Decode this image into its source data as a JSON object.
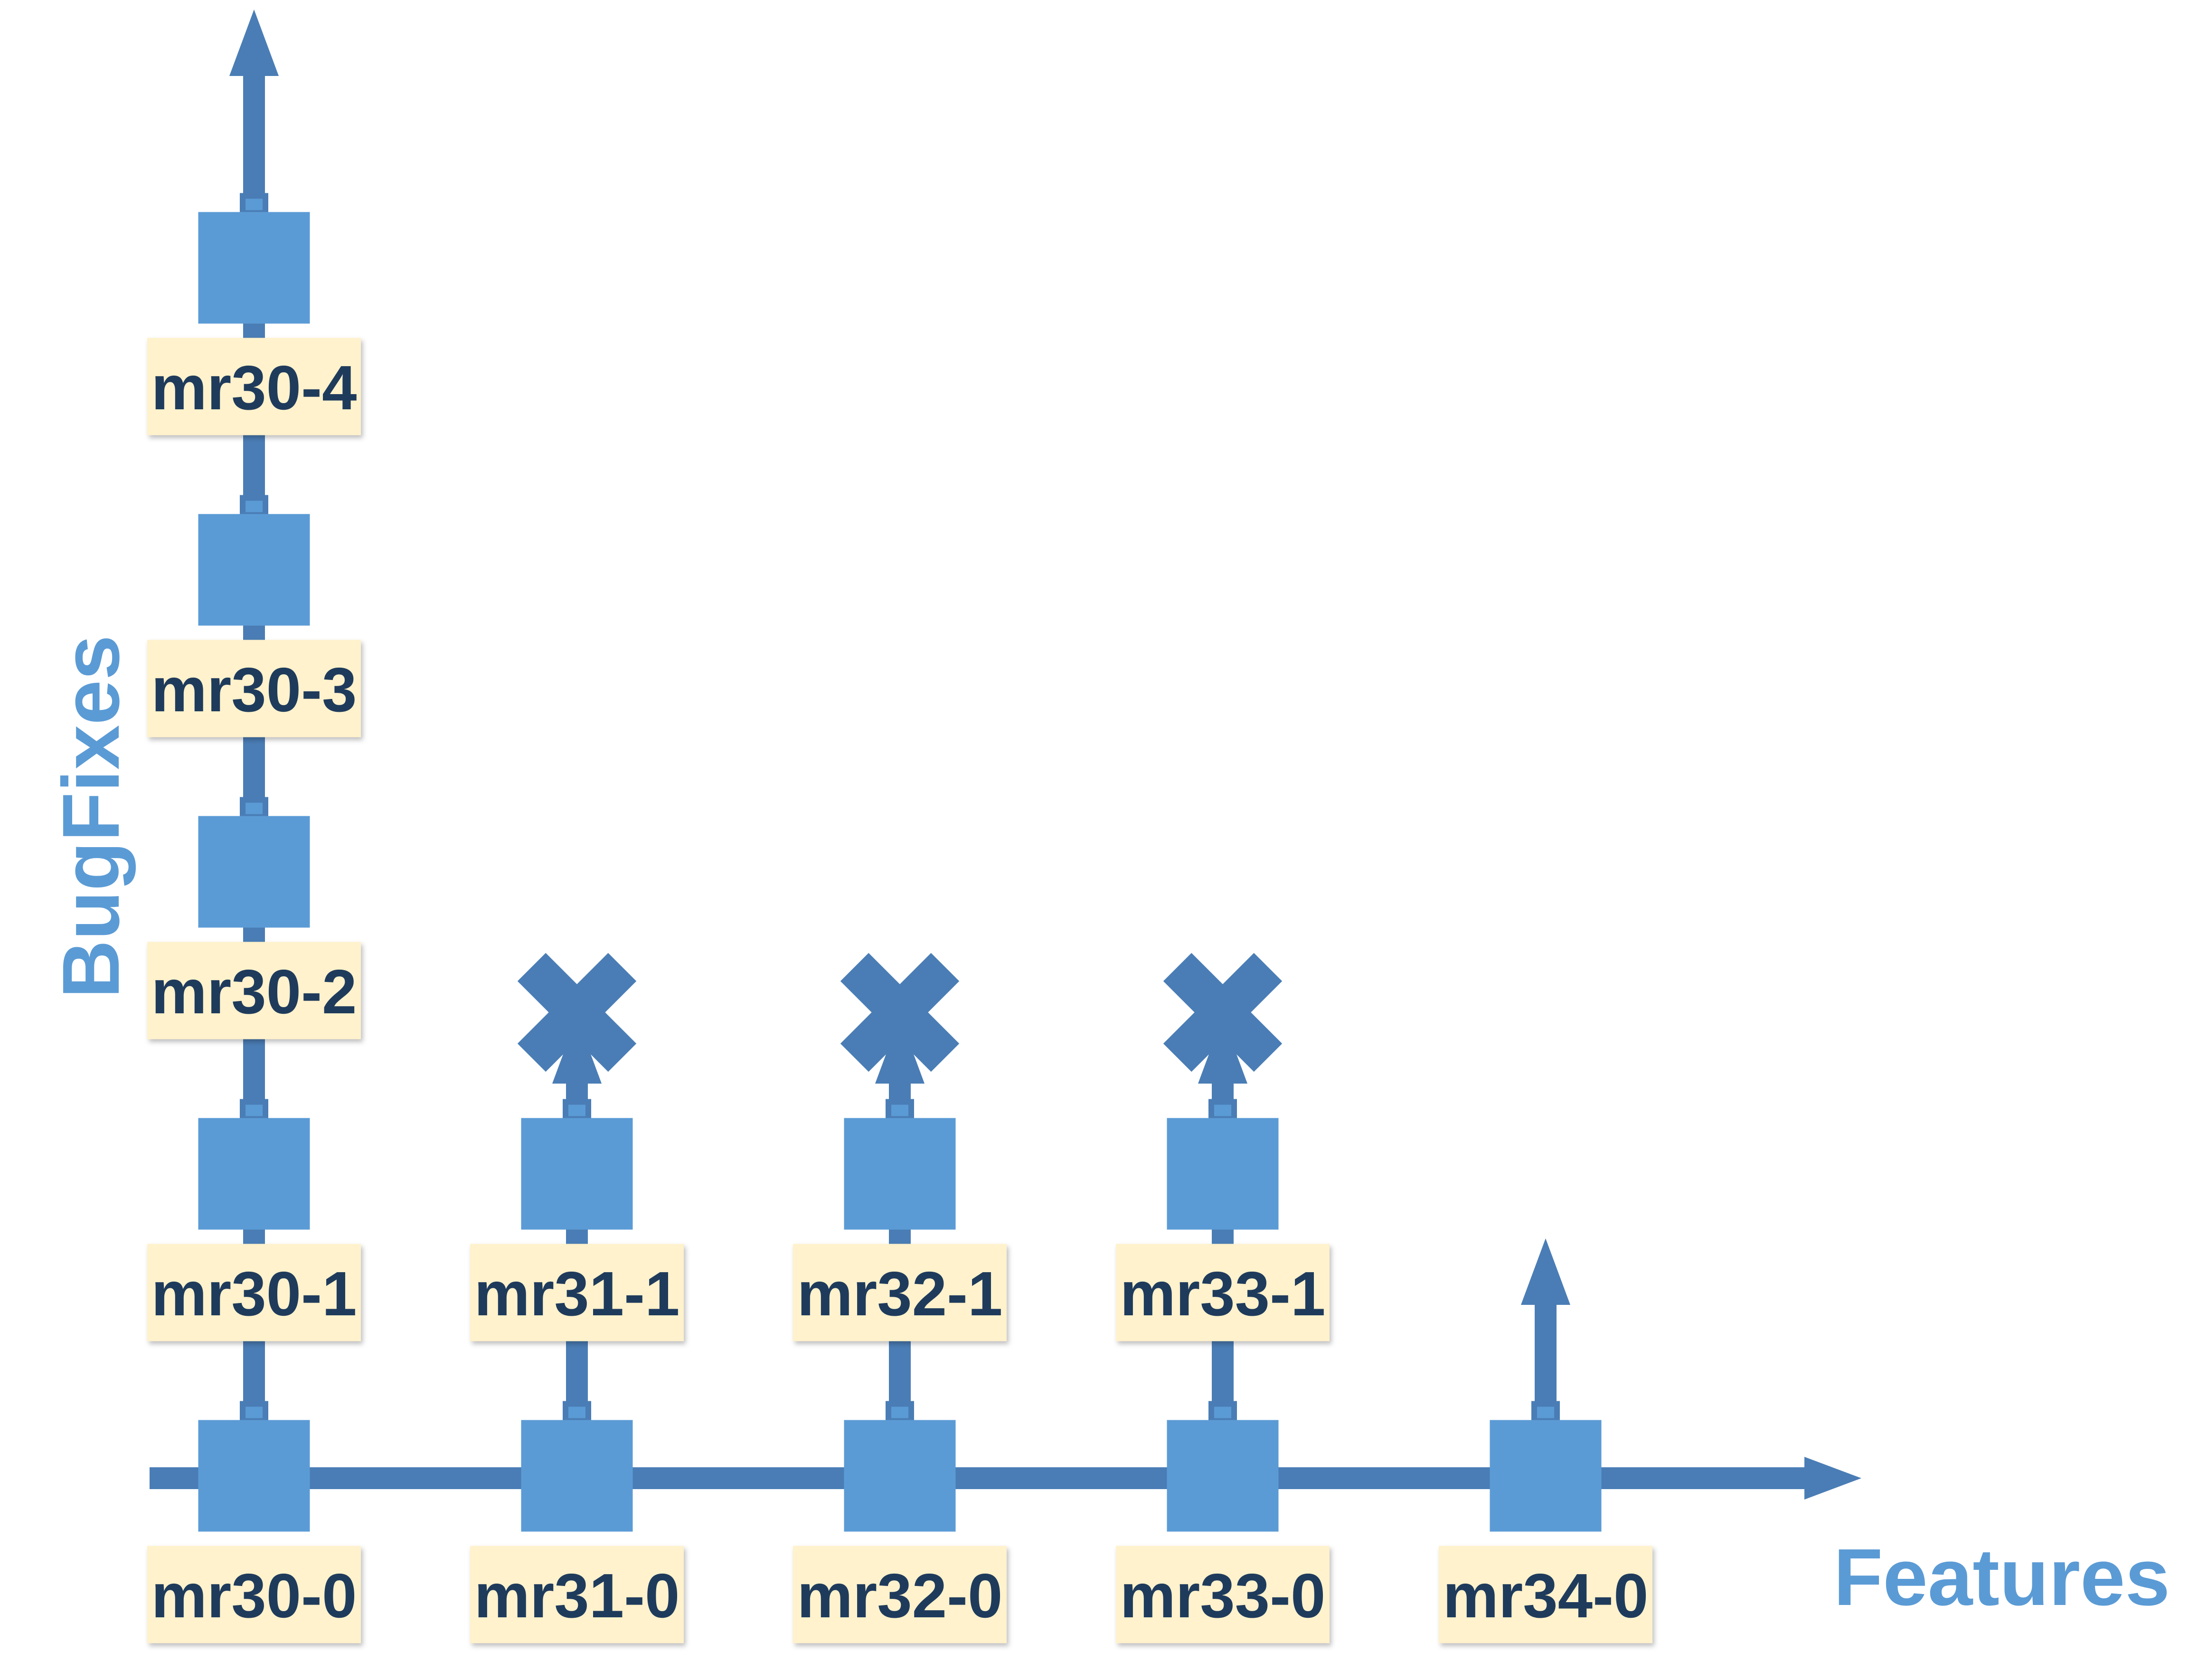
{
  "colors": {
    "axis": "#4a7db5",
    "node": "#5b9bd5",
    "label_bg": "#fff2cc",
    "label_text": "#1f3b5c",
    "axis_title": "#5b9bd5"
  },
  "axes": {
    "x_title": "Features",
    "y_title": "BugFixes"
  },
  "branches": [
    {
      "nodes": [
        "mr30-0",
        "mr30-1",
        "mr30-2",
        "mr30-3",
        "mr30-4"
      ],
      "end": "arrow"
    },
    {
      "nodes": [
        "mr31-0",
        "mr31-1"
      ],
      "end": "x-mark"
    },
    {
      "nodes": [
        "mr32-0",
        "mr32-1"
      ],
      "end": "x-mark"
    },
    {
      "nodes": [
        "mr33-0",
        "mr33-1"
      ],
      "end": "x-mark"
    },
    {
      "nodes": [
        "mr34-0"
      ],
      "end": "arrow"
    }
  ]
}
